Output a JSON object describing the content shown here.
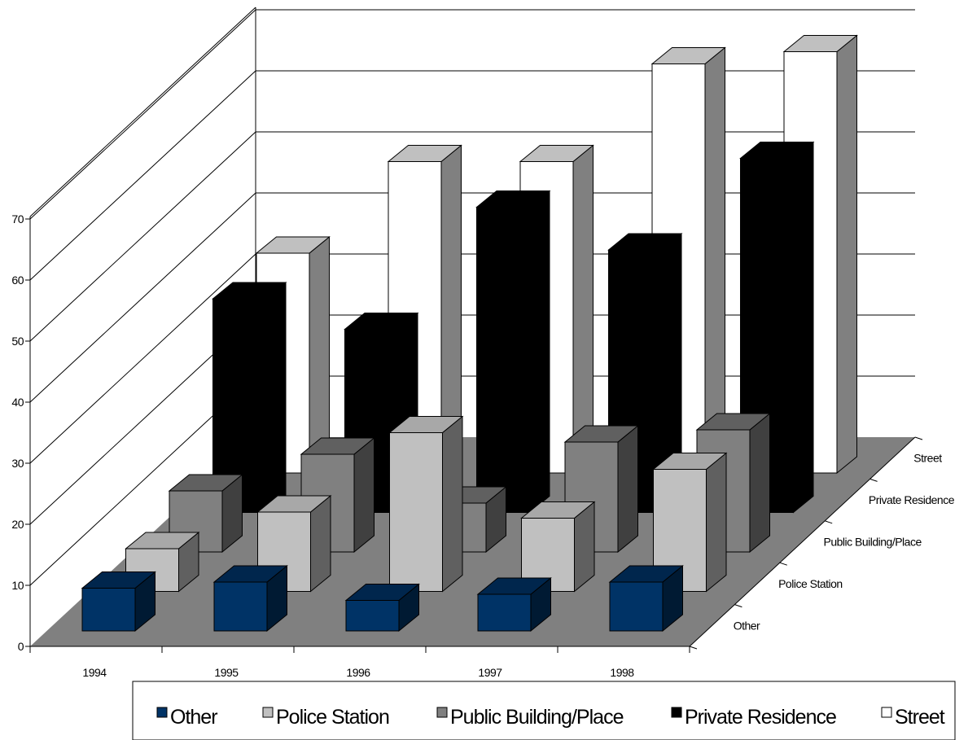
{
  "chart_data": {
    "type": "bar",
    "categories": [
      "1994",
      "1995",
      "1996",
      "1997",
      "1998"
    ],
    "series": [
      {
        "name": "Other",
        "values": [
          7,
          8,
          5,
          6,
          8
        ],
        "color": "#003366"
      },
      {
        "name": "Police Station",
        "values": [
          7,
          13,
          26,
          12,
          20
        ],
        "color": "#C0C0C0"
      },
      {
        "name": "Public Building/Place",
        "values": [
          10,
          16,
          8,
          18,
          20
        ],
        "color": "#808080"
      },
      {
        "name": "Private Residence",
        "values": [
          35,
          30,
          50,
          43,
          58
        ],
        "color": "#000000"
      },
      {
        "name": "Street",
        "values": [
          36,
          51,
          51,
          67,
          69
        ],
        "color": "#FFFFFF"
      }
    ],
    "ylim": [
      0,
      70
    ],
    "yticks": [
      "0",
      "10",
      "20",
      "30",
      "40",
      "50",
      "60",
      "70"
    ],
    "depth_labels": [
      "Other",
      "Police Station",
      "Public Building/Place",
      "Private Residence",
      "Street"
    ],
    "grid": true,
    "floor_color": "#808080",
    "legend_position": "bottom"
  }
}
